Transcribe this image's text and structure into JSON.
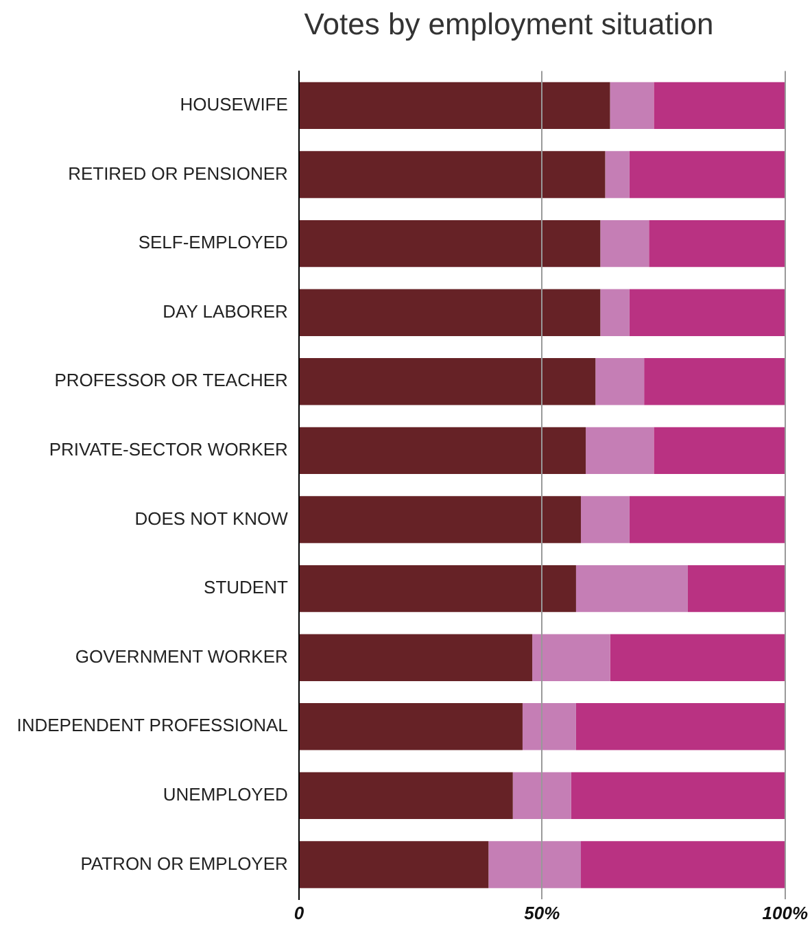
{
  "chart_data": {
    "type": "bar",
    "title": "Votes by employment situation",
    "orientation": "horizontal",
    "stacked": true,
    "categories": [
      "HOUSEWIFE",
      "RETIRED OR PENSIONER",
      "SELF-EMPLOYED",
      "DAY LABORER",
      "PROFESSOR OR TEACHER",
      "PRIVATE-SECTOR WORKER",
      "DOES NOT KNOW",
      "STUDENT",
      "GOVERNMENT WORKER",
      "INDEPENDENT PROFESSIONAL",
      "UNEMPLOYED",
      "PATRON OR EMPLOYER"
    ],
    "series": [
      {
        "color": "#662226",
        "values": [
          64,
          63,
          62,
          62,
          61,
          59,
          58,
          57,
          48,
          46,
          44,
          39
        ]
      },
      {
        "color": "#c57eb5",
        "values": [
          9,
          5,
          10,
          6,
          10,
          14,
          10,
          23,
          16,
          11,
          12,
          19
        ]
      },
      {
        "color": "#b93282",
        "values": [
          27,
          32,
          28,
          32,
          29,
          27,
          32,
          20,
          36,
          43,
          44,
          42
        ]
      }
    ],
    "xlim": [
      0,
      100
    ],
    "xticks": [
      0,
      {
        "value": 50,
        "label": "50%"
      },
      {
        "value": 100,
        "label": "100%"
      }
    ],
    "grid": "x",
    "legend": false
  }
}
